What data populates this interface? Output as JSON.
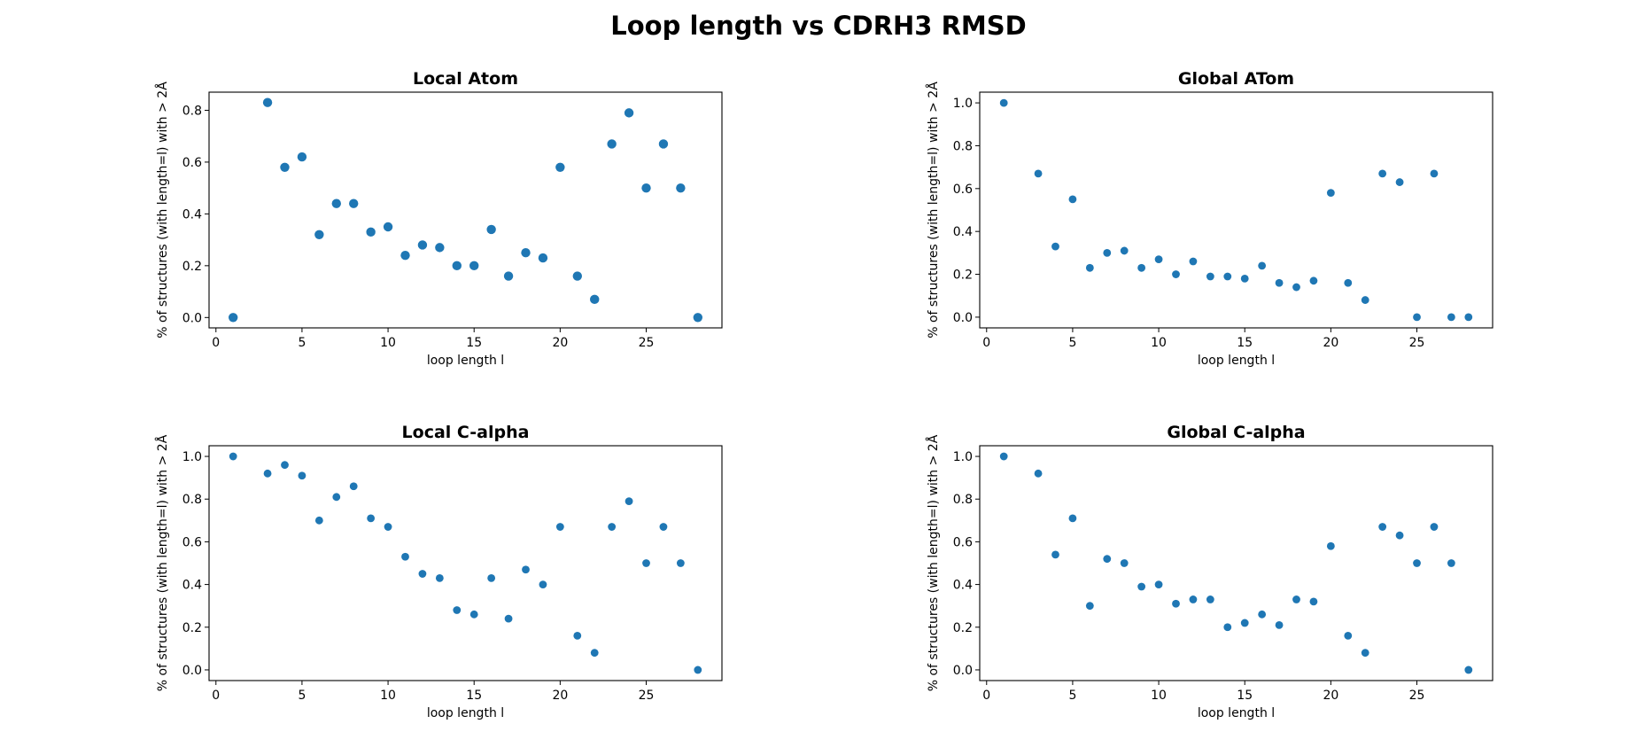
{
  "title": "Loop length vs CDRH3 RMSD",
  "chart_data": [
    {
      "type": "scatter",
      "title": "Local Atom",
      "xlabel": "loop length l",
      "ylabel": "% of structures (with length=l) with > 2Å",
      "xlim": [
        -0.4,
        29.4
      ],
      "ylim": [
        -0.04,
        0.87
      ],
      "xticks": [
        0,
        5,
        10,
        15,
        20,
        25
      ],
      "yticks": [
        0.0,
        0.2,
        0.4,
        0.6,
        0.8
      ],
      "x": [
        1,
        3,
        4,
        5,
        6,
        7,
        8,
        9,
        10,
        11,
        12,
        13,
        14,
        15,
        16,
        17,
        18,
        19,
        20,
        21,
        22,
        23,
        24,
        25,
        26,
        27,
        28
      ],
      "y": [
        0.0,
        0.83,
        0.58,
        0.62,
        0.32,
        0.44,
        0.44,
        0.33,
        0.35,
        0.24,
        0.28,
        0.27,
        0.2,
        0.2,
        0.34,
        0.16,
        0.25,
        0.23,
        0.58,
        0.16,
        0.07,
        0.67,
        0.79,
        0.5,
        0.67,
        0.5,
        0.0
      ],
      "color": "#1f77b4"
    },
    {
      "type": "scatter",
      "title": "Global ATom",
      "xlabel": "loop length l",
      "ylabel": "% of structures (with length=l) with > 2Å",
      "xlim": [
        -0.4,
        29.4
      ],
      "ylim": [
        -0.05,
        1.05
      ],
      "xticks": [
        0,
        5,
        10,
        15,
        20,
        25
      ],
      "yticks": [
        0.0,
        0.2,
        0.4,
        0.6,
        0.8,
        1.0
      ],
      "x": [
        1,
        3,
        4,
        5,
        6,
        7,
        8,
        9,
        10,
        11,
        12,
        13,
        14,
        15,
        16,
        17,
        18,
        19,
        20,
        21,
        22,
        23,
        24,
        25,
        26,
        27,
        28
      ],
      "y": [
        1.0,
        0.67,
        0.33,
        0.55,
        0.23,
        0.3,
        0.31,
        0.23,
        0.27,
        0.2,
        0.26,
        0.19,
        0.19,
        0.18,
        0.24,
        0.16,
        0.14,
        0.17,
        0.58,
        0.16,
        0.08,
        0.67,
        0.63,
        0.0,
        0.67,
        0.0,
        0.0
      ],
      "color": "#1f77b4"
    },
    {
      "type": "scatter",
      "title": "Local C-alpha",
      "xlabel": "loop length l",
      "ylabel": "% of structures (with length=l) with > 2Å",
      "xlim": [
        -0.4,
        29.4
      ],
      "ylim": [
        -0.05,
        1.05
      ],
      "xticks": [
        0,
        5,
        10,
        15,
        20,
        25
      ],
      "yticks": [
        0.0,
        0.2,
        0.4,
        0.6,
        0.8,
        1.0
      ],
      "x": [
        1,
        3,
        4,
        5,
        6,
        7,
        8,
        9,
        10,
        11,
        12,
        13,
        14,
        15,
        16,
        17,
        18,
        19,
        20,
        21,
        22,
        23,
        24,
        25,
        26,
        27,
        28
      ],
      "y": [
        1.0,
        0.92,
        0.96,
        0.91,
        0.7,
        0.81,
        0.86,
        0.71,
        0.67,
        0.53,
        0.45,
        0.43,
        0.28,
        0.26,
        0.43,
        0.24,
        0.47,
        0.4,
        0.67,
        0.16,
        0.08,
        0.67,
        0.79,
        0.5,
        0.67,
        0.5,
        0.0
      ],
      "color": "#1f77b4"
    },
    {
      "type": "scatter",
      "title": "Global C-alpha",
      "xlabel": "loop length l",
      "ylabel": "% of structures (with length=l) with > 2Å",
      "xlim": [
        -0.4,
        29.4
      ],
      "ylim": [
        -0.05,
        1.05
      ],
      "xticks": [
        0,
        5,
        10,
        15,
        20,
        25
      ],
      "yticks": [
        0.0,
        0.2,
        0.4,
        0.6,
        0.8,
        1.0
      ],
      "x": [
        1,
        3,
        4,
        5,
        6,
        7,
        8,
        9,
        10,
        11,
        12,
        13,
        14,
        15,
        16,
        17,
        18,
        19,
        20,
        21,
        22,
        23,
        24,
        25,
        26,
        27,
        28
      ],
      "y": [
        1.0,
        0.92,
        0.54,
        0.71,
        0.3,
        0.52,
        0.5,
        0.39,
        0.4,
        0.31,
        0.33,
        0.33,
        0.2,
        0.22,
        0.26,
        0.21,
        0.33,
        0.32,
        0.58,
        0.16,
        0.08,
        0.67,
        0.63,
        0.5,
        0.67,
        0.5,
        0.0
      ],
      "color": "#1f77b4"
    }
  ]
}
